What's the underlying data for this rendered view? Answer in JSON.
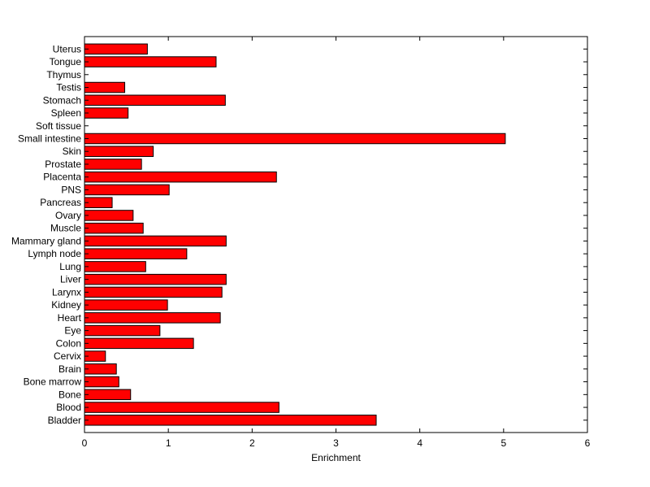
{
  "chart_data": {
    "type": "bar",
    "orientation": "horizontal",
    "xlabel": "Enrichment",
    "ylabel": "",
    "title": "",
    "xlim": [
      0,
      6
    ],
    "xticks": [
      0,
      1,
      2,
      3,
      4,
      5,
      6
    ],
    "grid": false,
    "bar_color": "#ff0000",
    "categories": [
      "Bladder",
      "Blood",
      "Bone",
      "Bone marrow",
      "Brain",
      "Cervix",
      "Colon",
      "Eye",
      "Heart",
      "Kidney",
      "Larynx",
      "Liver",
      "Lung",
      "Lymph node",
      "Mammary gland",
      "Muscle",
      "Ovary",
      "Pancreas",
      "PNS",
      "Placenta",
      "Prostate",
      "Skin",
      "Small intestine",
      "Soft tissue",
      "Spleen",
      "Stomach",
      "Testis",
      "Thymus",
      "Tongue",
      "Uterus"
    ],
    "values": [
      3.48,
      2.32,
      0.55,
      0.41,
      0.38,
      0.25,
      1.3,
      0.9,
      1.62,
      0.99,
      1.64,
      1.69,
      0.73,
      1.22,
      1.69,
      0.7,
      0.58,
      0.33,
      1.01,
      2.29,
      0.68,
      0.82,
      5.02,
      0,
      0.52,
      1.68,
      0.48,
      0,
      1.57,
      0.75
    ]
  }
}
